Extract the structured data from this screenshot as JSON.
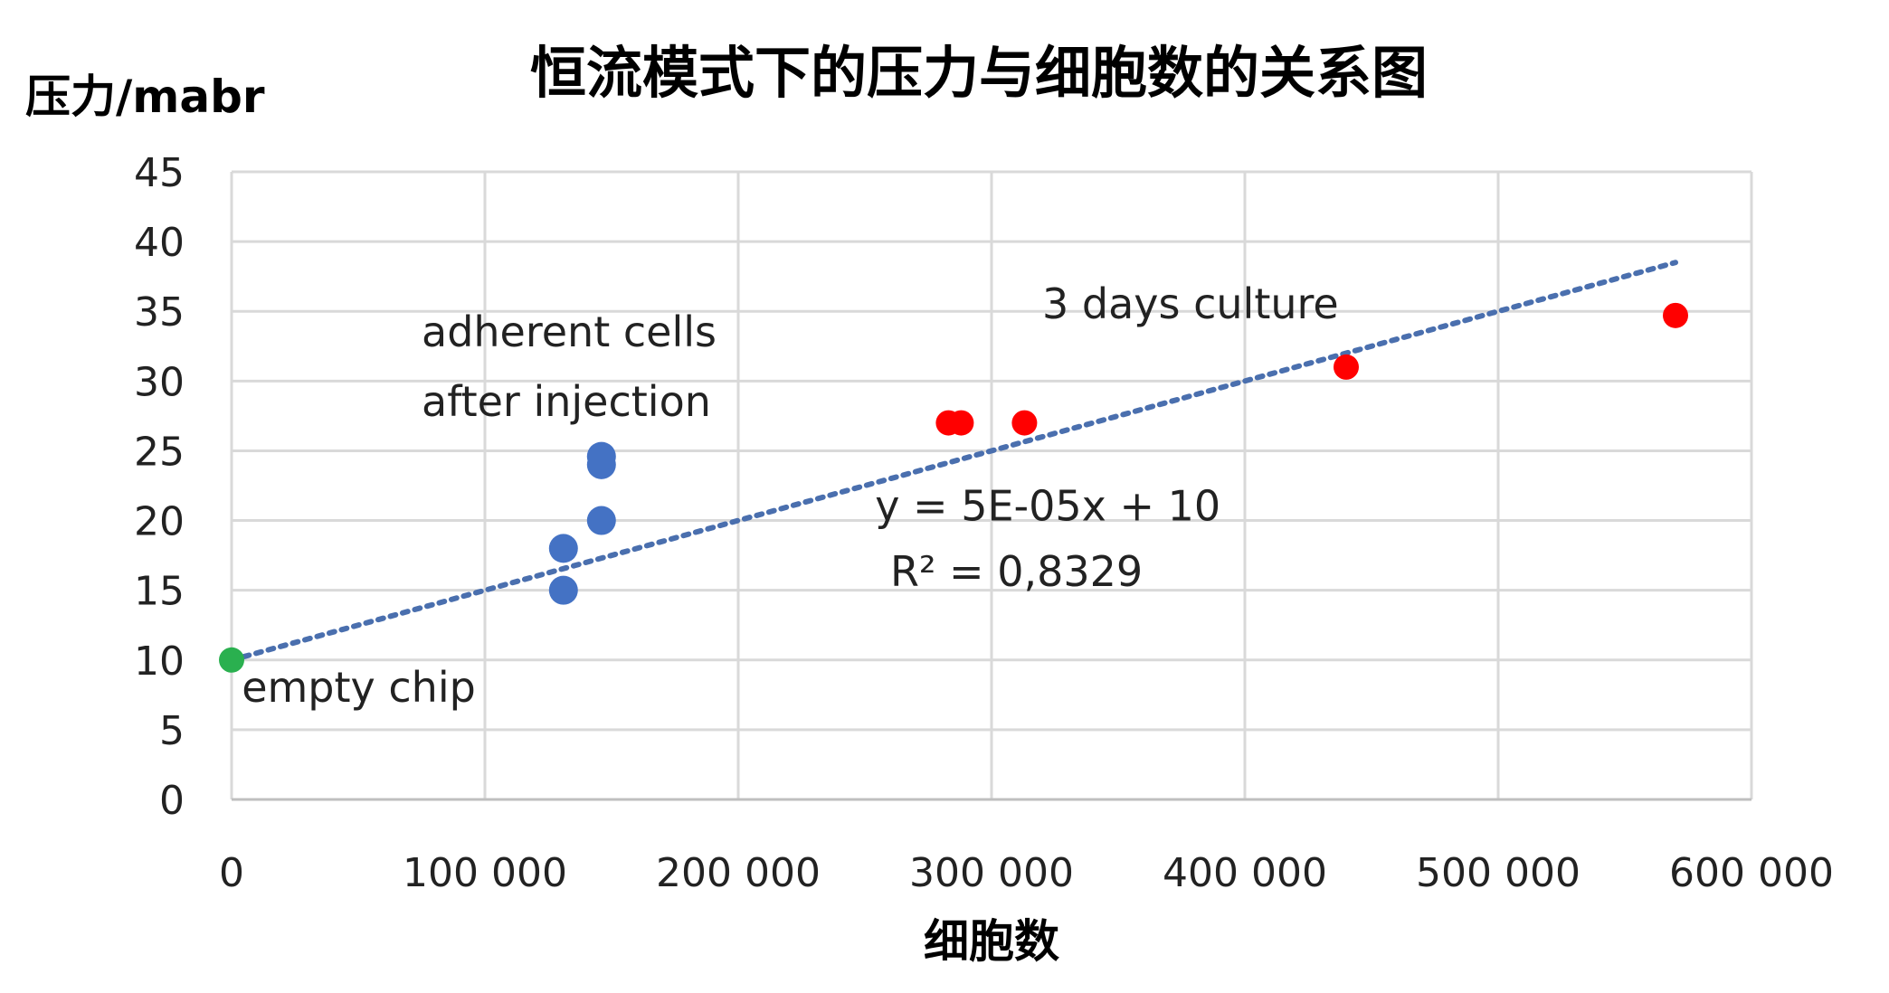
{
  "chart_data": {
    "type": "scatter",
    "title": "恒流模式下的压力与细胞数的关系图",
    "xlabel": "细胞数",
    "ylabel": "压力/mabr",
    "xlim": [
      0,
      600000
    ],
    "ylim": [
      0,
      45
    ],
    "x_ticks": [
      0,
      100000,
      200000,
      300000,
      400000,
      500000,
      600000
    ],
    "x_tick_labels": [
      "0",
      "100 000",
      "200 000",
      "300 000",
      "400 000",
      "500 000",
      "600 000"
    ],
    "y_ticks": [
      0,
      5,
      10,
      15,
      20,
      25,
      30,
      35,
      40,
      45
    ],
    "y_tick_labels": [
      "0",
      "5",
      "10",
      "15",
      "20",
      "25",
      "30",
      "35",
      "40",
      "45"
    ],
    "grid": true,
    "legend": "none",
    "series": [
      {
        "color": "#2ab04f",
        "points": [
          [
            0,
            10
          ]
        ]
      },
      {
        "color": "#4472c4",
        "points": [
          [
            131000,
            15
          ],
          [
            131000,
            18
          ],
          [
            146000,
            20
          ],
          [
            146000,
            24
          ],
          [
            146000,
            24.6
          ]
        ]
      },
      {
        "color": "#ff0000",
        "points": [
          [
            283000,
            27
          ],
          [
            288000,
            27
          ],
          [
            313000,
            27
          ],
          [
            440000,
            31
          ],
          [
            570000,
            34.7
          ]
        ]
      }
    ],
    "trendline": {
      "type": "linear",
      "style": "dotted",
      "color": "#4a6fae",
      "x_range": [
        0,
        570000
      ],
      "slope": 5e-05,
      "intercept": 10
    },
    "annotations": [
      {
        "text": "empty chip",
        "x": 4000,
        "y": 7
      },
      {
        "text": "adherent cells",
        "x": 75000,
        "y": 32.5
      },
      {
        "text": "after injection",
        "x": 75000,
        "y": 27.5
      },
      {
        "text": "3 days culture",
        "x": 320000,
        "y": 34.5
      },
      {
        "text": "y = 5E-05x + 10",
        "x": 254000,
        "y": 20
      },
      {
        "text": "R² = 0,8329",
        "x": 260000,
        "y": 15.3
      }
    ]
  }
}
